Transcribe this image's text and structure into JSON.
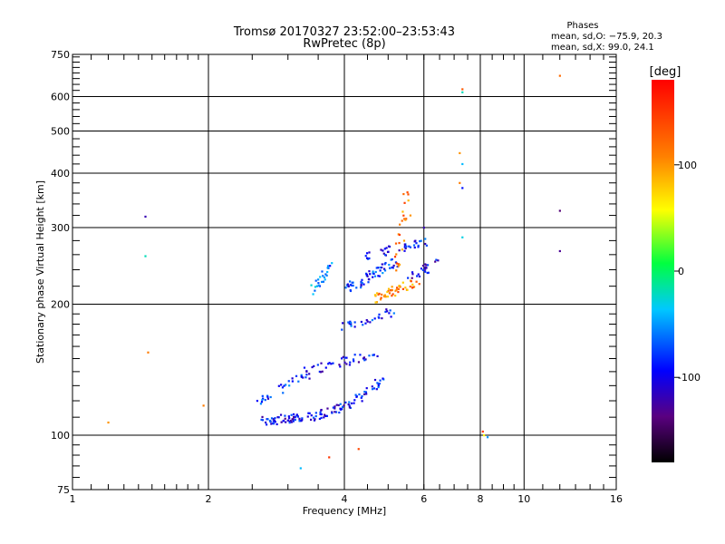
{
  "chart_data": {
    "type": "scatter",
    "title": "Tromsø 20170327 23:52:00–23:53:43",
    "subtitle": "RwPretec (8p)",
    "xlabel": "Frequency [MHz]",
    "ylabel": "Stationary phase Virtual Height [km]",
    "x_scale": "log",
    "y_scale": "log",
    "xlim": [
      1,
      16
    ],
    "ylim": [
      75,
      750
    ],
    "x_ticks": [
      1,
      2,
      4,
      6,
      8,
      10,
      16
    ],
    "y_ticks": [
      75,
      100,
      200,
      300,
      400,
      500,
      600,
      750
    ],
    "grid": true,
    "phase_stats": {
      "heading": "Phases",
      "line_o": "mean, sd,O: −75.9, 20.3",
      "line_x": "mean, sd,X:  99.0, 24.1"
    },
    "colorbar": {
      "label": "[deg]",
      "ticks": [
        100,
        0,
        -100
      ],
      "range": [
        -180,
        180
      ]
    },
    "trace_segments": [
      {
        "x0": 2.6,
        "y0": 108,
        "x1": 3.4,
        "y1": 110,
        "phase": -100,
        "n": 60
      },
      {
        "x0": 3.4,
        "y0": 110,
        "x1": 4.1,
        "y1": 117,
        "phase": -95,
        "n": 40
      },
      {
        "x0": 4.1,
        "y0": 117,
        "x1": 4.9,
        "y1": 135,
        "phase": -90,
        "n": 30
      },
      {
        "x0": 2.5,
        "y0": 118,
        "x1": 3.3,
        "y1": 138,
        "phase": -85,
        "n": 30
      },
      {
        "x0": 3.3,
        "y0": 140,
        "x1": 4.8,
        "y1": 155,
        "phase": -95,
        "n": 40
      },
      {
        "x0": 4.0,
        "y0": 178,
        "x1": 5.1,
        "y1": 192,
        "phase": -85,
        "n": 30
      },
      {
        "x0": 3.4,
        "y0": 215,
        "x1": 3.75,
        "y1": 245,
        "phase": -60,
        "n": 25
      },
      {
        "x0": 4.0,
        "y0": 215,
        "x1": 5.2,
        "y1": 250,
        "phase": -80,
        "n": 60
      },
      {
        "x0": 4.3,
        "y0": 255,
        "x1": 6.1,
        "y1": 280,
        "phase": -90,
        "n": 40
      },
      {
        "x0": 4.6,
        "y0": 205,
        "x1": 5.8,
        "y1": 225,
        "phase": 110,
        "n": 50
      },
      {
        "x0": 5.2,
        "y0": 235,
        "x1": 5.5,
        "y1": 360,
        "phase": 120,
        "n": 25
      },
      {
        "x0": 5.6,
        "y0": 230,
        "x1": 6.4,
        "y1": 250,
        "phase": -105,
        "n": 25
      }
    ],
    "points": [
      {
        "x": 1.2,
        "y": 107,
        "phase": 100
      },
      {
        "x": 1.45,
        "y": 318,
        "phase": -120
      },
      {
        "x": 1.45,
        "y": 258,
        "phase": -20
      },
      {
        "x": 1.47,
        "y": 155,
        "phase": 110
      },
      {
        "x": 1.95,
        "y": 117,
        "phase": 110
      },
      {
        "x": 3.2,
        "y": 84,
        "phase": -40
      },
      {
        "x": 3.7,
        "y": 89,
        "phase": 150
      },
      {
        "x": 4.3,
        "y": 93,
        "phase": 140
      },
      {
        "x": 5.6,
        "y": 320,
        "phase": 100
      },
      {
        "x": 6.0,
        "y": 300,
        "phase": -120
      },
      {
        "x": 7.3,
        "y": 624,
        "phase": 130
      },
      {
        "x": 7.3,
        "y": 614,
        "phase": -20
      },
      {
        "x": 7.2,
        "y": 445,
        "phase": 100
      },
      {
        "x": 7.3,
        "y": 420,
        "phase": -40
      },
      {
        "x": 7.2,
        "y": 380,
        "phase": 110
      },
      {
        "x": 7.3,
        "y": 370,
        "phase": -90
      },
      {
        "x": 7.3,
        "y": 285,
        "phase": -30
      },
      {
        "x": 8.1,
        "y": 102,
        "phase": 150
      },
      {
        "x": 8.15,
        "y": 100,
        "phase": 60
      },
      {
        "x": 8.3,
        "y": 99,
        "phase": -50
      },
      {
        "x": 12.0,
        "y": 670,
        "phase": 120
      },
      {
        "x": 12.0,
        "y": 328,
        "phase": -140
      },
      {
        "x": 12.0,
        "y": 265,
        "phase": -130
      }
    ]
  }
}
